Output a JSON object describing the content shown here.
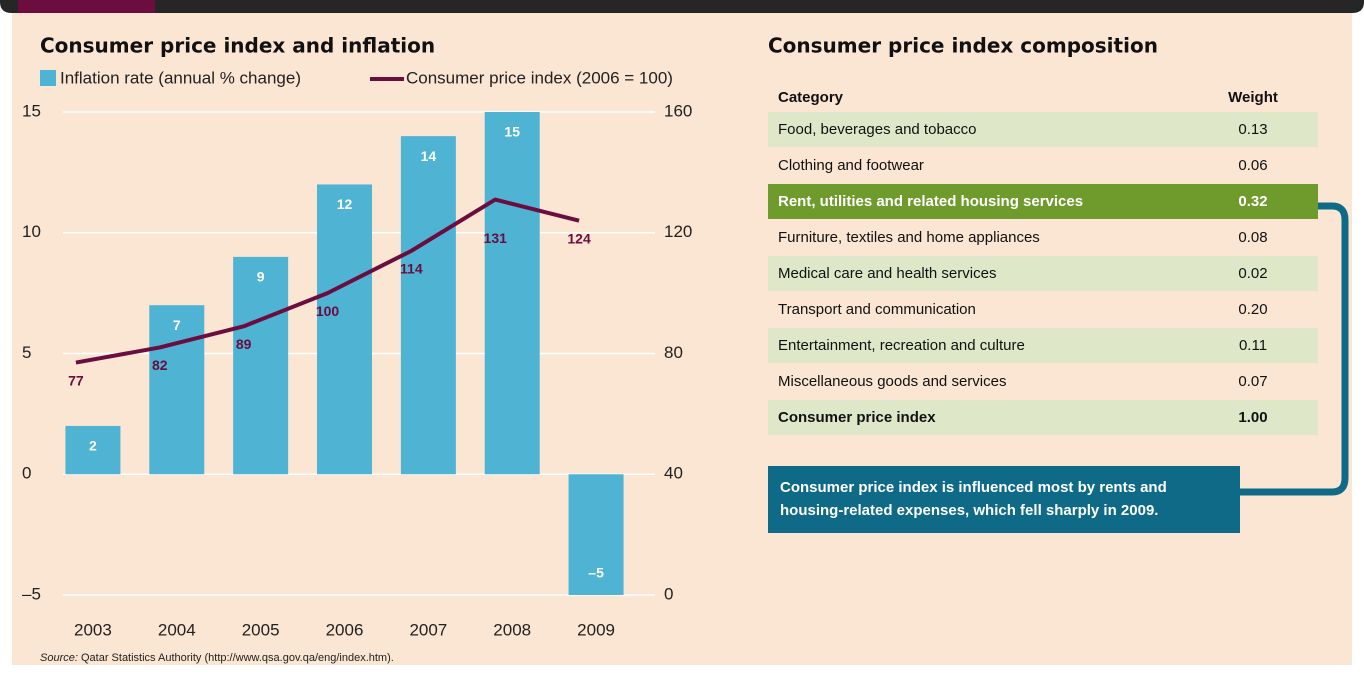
{
  "chart_data": {
    "type": "bar",
    "title": "Consumer price index and inflation",
    "categories": [
      "2003",
      "2004",
      "2005",
      "2006",
      "2007",
      "2008",
      "2009"
    ],
    "series": [
      {
        "name": "Inflation rate (annual % change)",
        "type": "bar",
        "color": "#4fb3d3",
        "values": [
          2,
          7,
          9,
          12,
          14,
          15,
          -5
        ],
        "value_labels": [
          "2",
          "7",
          "9",
          "12",
          "14",
          "15",
          "–5"
        ]
      },
      {
        "name": "Consumer price index (2006 = 100)",
        "type": "line",
        "axis": "y2",
        "color": "#6b0d3e",
        "values": [
          77,
          82,
          89,
          100,
          114,
          131,
          124
        ]
      }
    ],
    "ylim": [
      -5,
      15
    ],
    "yticks": [
      {
        "value": -5,
        "label": "–5"
      },
      0,
      5,
      10,
      15
    ],
    "y2lim": [
      0,
      160
    ],
    "y2ticks": [
      0,
      40,
      80,
      120,
      160
    ],
    "grid": true
  },
  "table": {
    "title": "Consumer price index composition",
    "columns": [
      "Category",
      "Weight"
    ],
    "rows": [
      [
        "Food, beverages and tobacco",
        "0.13"
      ],
      [
        "Clothing and footwear",
        "0.06"
      ],
      [
        "Rent, utilities and related housing services",
        "0.32"
      ],
      [
        "Furniture, textiles and home appliances",
        "0.08"
      ],
      [
        "Medical care and health services",
        "0.02"
      ],
      [
        "Transport and communication",
        "0.20"
      ],
      [
        "Entertainment, recreation and culture",
        "0.11"
      ],
      [
        "Miscellaneous goods and services",
        "0.07"
      ],
      [
        "Consumer price index",
        "1.00"
      ]
    ],
    "note": [
      "Consumer price index is influenced most by rents and",
      "housing-related expenses, which fell sharply in 2009."
    ]
  },
  "source": {
    "label": "Source:",
    "text": "Qatar Statistics Authority (http://www.qsa.gov.qa/eng/index.htm)."
  }
}
